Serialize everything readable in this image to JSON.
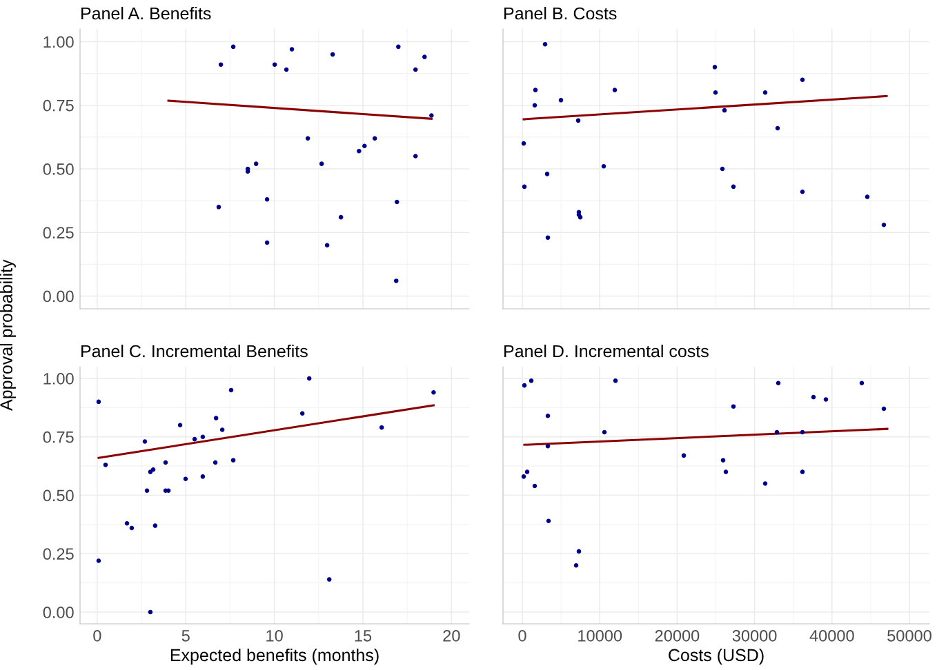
{
  "chart_data": [
    {
      "type": "scatter",
      "title": "Panel A. Benefits",
      "ylabel": "Approval probability",
      "xlim": [
        -0.97,
        21.0
      ],
      "ylim": [
        -0.05,
        1.05
      ],
      "xticks": [
        0,
        5,
        10,
        15,
        20
      ],
      "yticks": [
        {
          "value": 0,
          "label": "0.00"
        },
        {
          "value": 0.25,
          "label": "0.25"
        },
        {
          "value": 0.5,
          "label": "0.50"
        },
        {
          "value": 0.75,
          "label": "0.75"
        },
        {
          "value": 1,
          "label": "1.00"
        }
      ],
      "grid": true,
      "tick_labels": "y",
      "series": [
        {
          "color": "#00008b",
          "marker": "circle",
          "x": [
            6.98,
            7.68,
            10.02,
            10.68,
            10.99,
            13.29,
            17.0,
            18.48,
            17.97,
            18.87,
            11.89,
            8.5,
            8.5,
            8.97,
            12.67,
            14.78,
            15.09,
            15.67,
            17.97,
            6.86,
            9.59,
            13.76,
            16.92,
            9.59,
            12.98,
            16.88
          ],
          "values": [
            0.91,
            0.98,
            0.91,
            0.89,
            0.97,
            0.95,
            0.98,
            0.94,
            0.89,
            0.71,
            0.62,
            0.5,
            0.49,
            0.52,
            0.52,
            0.57,
            0.59,
            0.62,
            0.55,
            0.35,
            0.38,
            0.31,
            0.37,
            0.21,
            0.2,
            0.06
          ]
        },
        {
          "type": "line",
          "color": "#8b0000",
          "x": [
            4.02,
            18.87
          ],
          "values": [
            0.768,
            0.697
          ]
        }
      ]
    },
    {
      "type": "scatter",
      "title": "Panel B. Costs",
      "xlim": [
        -2496,
        52585
      ],
      "ylim": [
        -0.05,
        1.05
      ],
      "xticks": [
        0,
        10000,
        20000,
        30000,
        40000,
        50000
      ],
      "yticks": [
        0,
        0.25,
        0.5,
        0.75,
        1
      ],
      "grid": true,
      "tick_labels": false,
      "series": [
        {
          "color": "#00008b",
          "marker": "circle",
          "x": [
            2941,
            1693,
            1604,
            4991,
            11943,
            7219,
            178,
            267,
            3209,
            10517,
            7308,
            7308,
            7487,
            3298,
            24866,
            24955,
            26114,
            25847,
            27273,
            31373,
            32977,
            36185,
            36185,
            44563,
            46702
          ],
          "values": [
            0.99,
            0.81,
            0.75,
            0.77,
            0.81,
            0.69,
            0.6,
            0.43,
            0.48,
            0.51,
            0.33,
            0.32,
            0.31,
            0.23,
            0.9,
            0.8,
            0.73,
            0.5,
            0.43,
            0.8,
            0.66,
            0.85,
            0.41,
            0.39,
            0.28
          ]
        },
        {
          "type": "line",
          "color": "#8b0000",
          "x": [
            178,
            47059
          ],
          "values": [
            0.695,
            0.786
          ]
        }
      ]
    },
    {
      "type": "scatter",
      "title": "Panel C. Incremental Benefits",
      "xlabel": "Expected benefits (months)",
      "xlim": [
        -0.97,
        21.0
      ],
      "ylim": [
        -0.05,
        1.05
      ],
      "xticks": [
        0,
        5,
        10,
        15,
        20
      ],
      "yticks": [
        {
          "value": 0,
          "label": "0.00"
        },
        {
          "value": 0.25,
          "label": "0.25"
        },
        {
          "value": 0.5,
          "label": "0.50"
        },
        {
          "value": 0.75,
          "label": "0.75"
        },
        {
          "value": 1,
          "label": "1.00"
        }
      ],
      "grid": true,
      "series": [
        {
          "color": "#00008b",
          "marker": "circle",
          "x": [
            0.08,
            0.08,
            0.47,
            1.68,
            1.95,
            2.69,
            2.81,
            3.0,
            3.16,
            3.27,
            3.0,
            3.86,
            3.86,
            4.02,
            4.68,
            4.99,
            5.5,
            5.96,
            5.96,
            6.67,
            6.71,
            7.06,
            7.56,
            7.68,
            11.58,
            11.97,
            13.1,
            16.06,
            18.99
          ],
          "values": [
            0.9,
            0.22,
            0.63,
            0.38,
            0.36,
            0.73,
            0.52,
            0.6,
            0.61,
            0.37,
            0.0,
            0.64,
            0.52,
            0.52,
            0.8,
            0.57,
            0.74,
            0.75,
            0.58,
            0.64,
            0.83,
            0.78,
            0.95,
            0.65,
            0.85,
            1.0,
            0.14,
            0.79,
            0.94
          ]
        },
        {
          "type": "line",
          "color": "#8b0000",
          "x": [
            0.08,
            18.99
          ],
          "values": [
            0.66,
            0.885
          ]
        }
      ]
    },
    {
      "type": "scatter",
      "title": "Panel D. Incremental costs",
      "xlabel": "Costs (USD)",
      "xlim": [
        -2496,
        52585
      ],
      "ylim": [
        -0.05,
        1.05
      ],
      "xticks": [
        0,
        10000,
        20000,
        30000,
        40000,
        50000
      ],
      "yticks": [
        0,
        0.25,
        0.5,
        0.75,
        1
      ],
      "grid": true,
      "tick_labels": "x",
      "series": [
        {
          "color": "#00008b",
          "marker": "circle",
          "x": [
            267,
            1159,
            624,
            178,
            1604,
            3298,
            3298,
            3387,
            7308,
            6952,
            10606,
            12032,
            20856,
            25936,
            26292,
            27273,
            31373,
            32888,
            33066,
            36185,
            36185,
            37611,
            39216,
            43850,
            46702
          ],
          "values": [
            0.97,
            0.99,
            0.6,
            0.58,
            0.54,
            0.84,
            0.71,
            0.39,
            0.26,
            0.2,
            0.77,
            0.99,
            0.67,
            0.65,
            0.6,
            0.88,
            0.55,
            0.77,
            0.98,
            0.77,
            0.6,
            0.92,
            0.91,
            0.98,
            0.87
          ]
        },
        {
          "type": "line",
          "color": "#8b0000",
          "x": [
            267,
            47148
          ],
          "values": [
            0.716,
            0.784
          ]
        }
      ]
    }
  ]
}
